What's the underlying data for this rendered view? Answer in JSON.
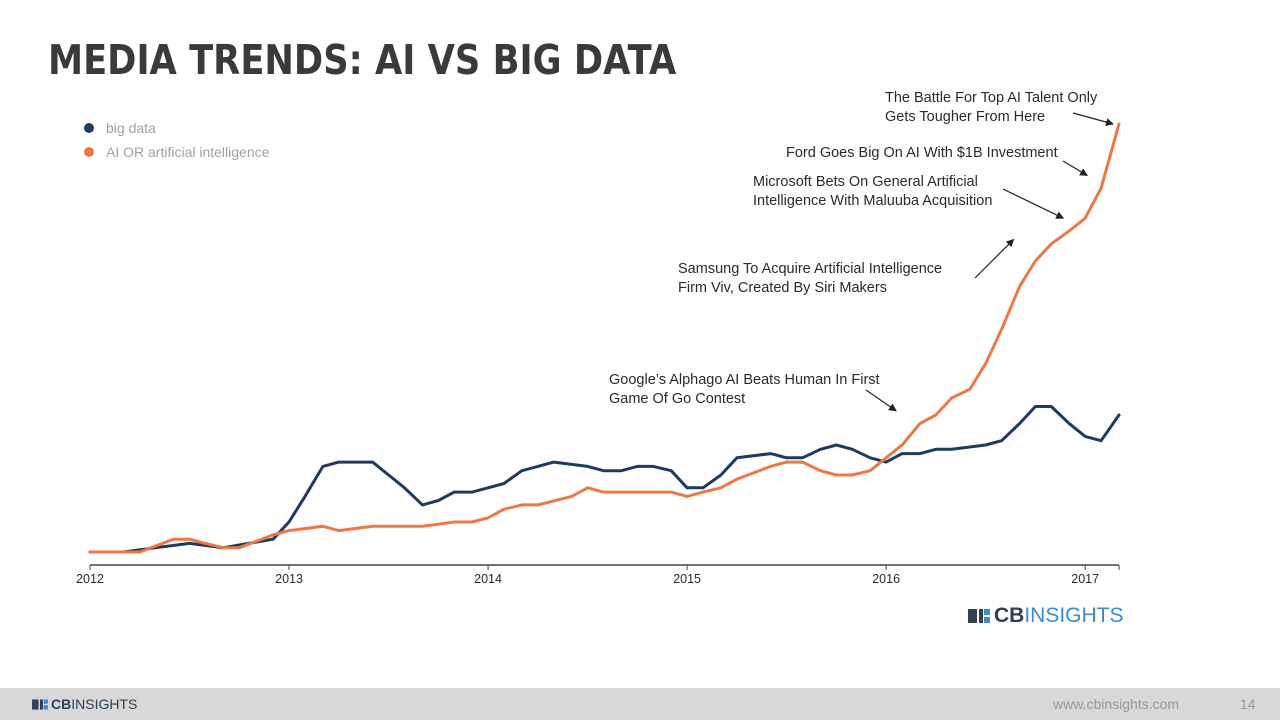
{
  "page": {
    "title": "MEDIA TRENDS: AI VS BIG DATA",
    "footer_url": "www.cbinsights.com",
    "page_number": "14"
  },
  "brand": {
    "cb": "CB",
    "insights": "INSIGHTS",
    "colors": {
      "navy": "#2f3f56",
      "blue": "#3a8bd1"
    }
  },
  "chart_data": {
    "type": "line",
    "x_ticks": [
      "2012",
      "2013",
      "2014",
      "2015",
      "2016",
      "2017"
    ],
    "xlim": [
      2012.0,
      2017.17
    ],
    "ylim": [
      0,
      100
    ],
    "legend_position": "top-left",
    "grid": false,
    "series": [
      {
        "name": "big data",
        "color": "#1f3a5f",
        "points": [
          [
            2012.0,
            0
          ],
          [
            2012.17,
            0
          ],
          [
            2012.33,
            1
          ],
          [
            2012.5,
            2
          ],
          [
            2012.67,
            1
          ],
          [
            2012.92,
            3
          ],
          [
            2013.0,
            7
          ],
          [
            2013.08,
            13
          ],
          [
            2013.17,
            20
          ],
          [
            2013.25,
            21
          ],
          [
            2013.42,
            21
          ],
          [
            2013.58,
            15
          ],
          [
            2013.67,
            11
          ],
          [
            2013.75,
            12
          ],
          [
            2013.83,
            14
          ],
          [
            2013.92,
            14
          ],
          [
            2014.0,
            15
          ],
          [
            2014.08,
            16
          ],
          [
            2014.17,
            19
          ],
          [
            2014.25,
            20
          ],
          [
            2014.33,
            21
          ],
          [
            2014.5,
            20
          ],
          [
            2014.58,
            19
          ],
          [
            2014.67,
            19
          ],
          [
            2014.75,
            20
          ],
          [
            2014.83,
            20
          ],
          [
            2014.92,
            19
          ],
          [
            2015.0,
            15
          ],
          [
            2015.08,
            15
          ],
          [
            2015.17,
            18
          ],
          [
            2015.25,
            22
          ],
          [
            2015.42,
            23
          ],
          [
            2015.5,
            22
          ],
          [
            2015.58,
            22
          ],
          [
            2015.67,
            24
          ],
          [
            2015.75,
            25
          ],
          [
            2015.83,
            24
          ],
          [
            2015.92,
            22
          ],
          [
            2016.0,
            21
          ],
          [
            2016.08,
            23
          ],
          [
            2016.17,
            23
          ],
          [
            2016.25,
            24
          ],
          [
            2016.33,
            24
          ],
          [
            2016.5,
            25
          ],
          [
            2016.58,
            26
          ],
          [
            2016.67,
            30
          ],
          [
            2016.75,
            34
          ],
          [
            2016.83,
            34
          ],
          [
            2016.92,
            30
          ],
          [
            2017.0,
            27
          ],
          [
            2017.08,
            26
          ],
          [
            2017.17,
            32
          ]
        ]
      },
      {
        "name": "AI OR artificial intelligence",
        "color": "#ec7845",
        "points": [
          [
            2012.0,
            0
          ],
          [
            2012.17,
            0
          ],
          [
            2012.25,
            0
          ],
          [
            2012.42,
            3
          ],
          [
            2012.5,
            3
          ],
          [
            2012.58,
            2
          ],
          [
            2012.67,
            1
          ],
          [
            2012.75,
            1
          ],
          [
            2012.92,
            4
          ],
          [
            2013.0,
            5
          ],
          [
            2013.17,
            6
          ],
          [
            2013.25,
            5
          ],
          [
            2013.42,
            6
          ],
          [
            2013.58,
            6
          ],
          [
            2013.67,
            6
          ],
          [
            2013.83,
            7
          ],
          [
            2013.92,
            7
          ],
          [
            2014.0,
            8
          ],
          [
            2014.08,
            10
          ],
          [
            2014.17,
            11
          ],
          [
            2014.25,
            11
          ],
          [
            2014.42,
            13
          ],
          [
            2014.5,
            15
          ],
          [
            2014.58,
            14
          ],
          [
            2014.67,
            14
          ],
          [
            2014.83,
            14
          ],
          [
            2014.92,
            14
          ],
          [
            2015.0,
            13
          ],
          [
            2015.08,
            14
          ],
          [
            2015.17,
            15
          ],
          [
            2015.25,
            17
          ],
          [
            2015.42,
            20
          ],
          [
            2015.5,
            21
          ],
          [
            2015.58,
            21
          ],
          [
            2015.67,
            19
          ],
          [
            2015.75,
            18
          ],
          [
            2015.83,
            18
          ],
          [
            2015.92,
            19
          ],
          [
            2016.0,
            22
          ],
          [
            2016.08,
            25
          ],
          [
            2016.17,
            30
          ],
          [
            2016.25,
            32
          ],
          [
            2016.33,
            36
          ],
          [
            2016.42,
            38
          ],
          [
            2016.5,
            44
          ],
          [
            2016.58,
            52
          ],
          [
            2016.67,
            62
          ],
          [
            2016.75,
            68
          ],
          [
            2016.83,
            72
          ],
          [
            2016.92,
            75
          ],
          [
            2017.0,
            78
          ],
          [
            2017.08,
            85
          ],
          [
            2017.17,
            100
          ]
        ]
      }
    ],
    "annotations": [
      {
        "lines": [
          "The Battle For Top AI Talent Only",
          "Gets Tougher From Here"
        ],
        "target": [
          2017.17,
          100
        ]
      },
      {
        "lines": [
          "Ford Goes Big On AI With $1B Investment"
        ],
        "target": [
          2017.04,
          88
        ]
      },
      {
        "lines": [
          "Microsoft Bets On General Artificial",
          "Intelligence With Maluuba Acquisition"
        ],
        "target": [
          2016.92,
          78
        ]
      },
      {
        "lines": [
          "Samsung To Acquire Artificial Intelligence",
          "Firm Viv, Created By Siri Makers"
        ],
        "target": [
          2016.67,
          73
        ]
      },
      {
        "lines": [
          "Google’s Alphago AI Beats Human In First",
          "Game Of Go Contest"
        ],
        "target": [
          2016.08,
          33
        ]
      }
    ]
  }
}
